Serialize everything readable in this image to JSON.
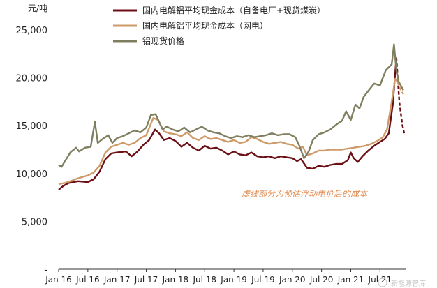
{
  "chart_data": {
    "type": "line",
    "unit_label": "元/吨",
    "xlabel": "",
    "ylabel": "",
    "xlim": [
      2016.0,
      2021.95
    ],
    "ylim": [
      0,
      25000
    ],
    "y_ticks": [
      {
        "value": 0,
        "label": "-"
      },
      {
        "value": 5000,
        "label": "5,000"
      },
      {
        "value": 10000,
        "label": "10,000"
      },
      {
        "value": 15000,
        "label": "15,000"
      },
      {
        "value": 20000,
        "label": "20,000"
      },
      {
        "value": 25000,
        "label": "25,000"
      }
    ],
    "x_ticks": [
      {
        "value": 2016.0,
        "label": "Jan 16"
      },
      {
        "value": 2016.5,
        "label": "Jul 16"
      },
      {
        "value": 2017.0,
        "label": "Jan 17"
      },
      {
        "value": 2017.5,
        "label": "Jul 17"
      },
      {
        "value": 2018.0,
        "label": "Jan 18"
      },
      {
        "value": 2018.5,
        "label": "Jul 18"
      },
      {
        "value": 2019.0,
        "label": "Jan 19"
      },
      {
        "value": 2019.5,
        "label": "Jul 19"
      },
      {
        "value": 2020.0,
        "label": "Jan 20"
      },
      {
        "value": 2020.5,
        "label": "Jul 20"
      },
      {
        "value": 2021.0,
        "label": "Jan 21"
      },
      {
        "value": 2021.5,
        "label": "Jul 21"
      }
    ],
    "legend": "top-center",
    "grid": false,
    "annotation": {
      "text": "虚线部分为预估浮动电价后的成本",
      "color": "#E08A4E",
      "x": 2020.5,
      "y": 7800
    },
    "watermark": "新能源智库",
    "series": [
      {
        "name": "国内电解铝平均现金成本（自备电厂+现货煤炭）",
        "color": "#6B0F14",
        "dashed_tail_from": 2021.78,
        "points": [
          [
            2016.0,
            8300
          ],
          [
            2016.08,
            8700
          ],
          [
            2016.17,
            9000
          ],
          [
            2016.33,
            9200
          ],
          [
            2016.5,
            9100
          ],
          [
            2016.6,
            9400
          ],
          [
            2016.7,
            10200
          ],
          [
            2016.8,
            11500
          ],
          [
            2016.9,
            12100
          ],
          [
            2017.0,
            12200
          ],
          [
            2017.15,
            12300
          ],
          [
            2017.25,
            11800
          ],
          [
            2017.35,
            12300
          ],
          [
            2017.45,
            13000
          ],
          [
            2017.55,
            13500
          ],
          [
            2017.65,
            14600
          ],
          [
            2017.72,
            14200
          ],
          [
            2017.8,
            13500
          ],
          [
            2017.9,
            13700
          ],
          [
            2018.0,
            13400
          ],
          [
            2018.1,
            12800
          ],
          [
            2018.2,
            13200
          ],
          [
            2018.3,
            12700
          ],
          [
            2018.4,
            12400
          ],
          [
            2018.5,
            12900
          ],
          [
            2018.6,
            12600
          ],
          [
            2018.7,
            12700
          ],
          [
            2018.8,
            12400
          ],
          [
            2018.9,
            12000
          ],
          [
            2019.0,
            12300
          ],
          [
            2019.1,
            12000
          ],
          [
            2019.2,
            11900
          ],
          [
            2019.3,
            12200
          ],
          [
            2019.4,
            11800
          ],
          [
            2019.5,
            11700
          ],
          [
            2019.6,
            11800
          ],
          [
            2019.7,
            11600
          ],
          [
            2019.8,
            11800
          ],
          [
            2019.9,
            11700
          ],
          [
            2020.0,
            11600
          ],
          [
            2020.08,
            11300
          ],
          [
            2020.15,
            11500
          ],
          [
            2020.25,
            10600
          ],
          [
            2020.35,
            10500
          ],
          [
            2020.45,
            10800
          ],
          [
            2020.55,
            10700
          ],
          [
            2020.65,
            10900
          ],
          [
            2020.75,
            11000
          ],
          [
            2020.85,
            11000
          ],
          [
            2020.95,
            11400
          ],
          [
            2021.0,
            12200
          ],
          [
            2021.05,
            11600
          ],
          [
            2021.12,
            11200
          ],
          [
            2021.2,
            11800
          ],
          [
            2021.3,
            12400
          ],
          [
            2021.4,
            12900
          ],
          [
            2021.5,
            13300
          ],
          [
            2021.58,
            13600
          ],
          [
            2021.65,
            14200
          ],
          [
            2021.72,
            17200
          ],
          [
            2021.78,
            22100
          ],
          [
            2021.83,
            17500
          ],
          [
            2021.88,
            15200
          ],
          [
            2021.92,
            14000
          ]
        ]
      },
      {
        "name": "国内电解铝平均现金成本（网电）",
        "color": "#CE9A68",
        "dashed_tail_from": 2021.8,
        "points": [
          [
            2016.0,
            8900
          ],
          [
            2016.1,
            9000
          ],
          [
            2016.2,
            9200
          ],
          [
            2016.33,
            9500
          ],
          [
            2016.5,
            9800
          ],
          [
            2016.6,
            10100
          ],
          [
            2016.7,
            10800
          ],
          [
            2016.8,
            12200
          ],
          [
            2016.9,
            12800
          ],
          [
            2017.0,
            13000
          ],
          [
            2017.1,
            13200
          ],
          [
            2017.2,
            13000
          ],
          [
            2017.3,
            13200
          ],
          [
            2017.4,
            13700
          ],
          [
            2017.5,
            14000
          ],
          [
            2017.62,
            15800
          ],
          [
            2017.7,
            15600
          ],
          [
            2017.8,
            14400
          ],
          [
            2017.9,
            14200
          ],
          [
            2018.0,
            14100
          ],
          [
            2018.1,
            13900
          ],
          [
            2018.2,
            14300
          ],
          [
            2018.3,
            13700
          ],
          [
            2018.4,
            13500
          ],
          [
            2018.5,
            13900
          ],
          [
            2018.6,
            13600
          ],
          [
            2018.7,
            13700
          ],
          [
            2018.8,
            13500
          ],
          [
            2018.9,
            13300
          ],
          [
            2019.0,
            13500
          ],
          [
            2019.1,
            13200
          ],
          [
            2019.2,
            13300
          ],
          [
            2019.3,
            13800
          ],
          [
            2019.4,
            13600
          ],
          [
            2019.5,
            13300
          ],
          [
            2019.6,
            13100
          ],
          [
            2019.7,
            13200
          ],
          [
            2019.8,
            13300
          ],
          [
            2019.9,
            13100
          ],
          [
            2020.0,
            13000
          ],
          [
            2020.1,
            12600
          ],
          [
            2020.18,
            12800
          ],
          [
            2020.25,
            11900
          ],
          [
            2020.35,
            12100
          ],
          [
            2020.45,
            12400
          ],
          [
            2020.55,
            12400
          ],
          [
            2020.65,
            12500
          ],
          [
            2020.75,
            12500
          ],
          [
            2020.85,
            12500
          ],
          [
            2020.95,
            12600
          ],
          [
            2021.05,
            12700
          ],
          [
            2021.15,
            12800
          ],
          [
            2021.25,
            12900
          ],
          [
            2021.35,
            13100
          ],
          [
            2021.45,
            13400
          ],
          [
            2021.55,
            13800
          ],
          [
            2021.62,
            14600
          ],
          [
            2021.7,
            17500
          ],
          [
            2021.76,
            19900
          ],
          [
            2021.8,
            19600
          ],
          [
            2021.85,
            18800
          ],
          [
            2021.9,
            18300
          ]
        ]
      },
      {
        "name": "铝现货价格",
        "color": "#7F7F60",
        "points": [
          [
            2016.0,
            10900
          ],
          [
            2016.05,
            10700
          ],
          [
            2016.1,
            11200
          ],
          [
            2016.2,
            12200
          ],
          [
            2016.3,
            12700
          ],
          [
            2016.35,
            12300
          ],
          [
            2016.45,
            12700
          ],
          [
            2016.55,
            12800
          ],
          [
            2016.62,
            15400
          ],
          [
            2016.67,
            13200
          ],
          [
            2016.75,
            13600
          ],
          [
            2016.85,
            14000
          ],
          [
            2016.92,
            13200
          ],
          [
            2017.0,
            13700
          ],
          [
            2017.1,
            13900
          ],
          [
            2017.2,
            14200
          ],
          [
            2017.3,
            14500
          ],
          [
            2017.4,
            14300
          ],
          [
            2017.5,
            14800
          ],
          [
            2017.58,
            16100
          ],
          [
            2017.66,
            16200
          ],
          [
            2017.72,
            15400
          ],
          [
            2017.78,
            14600
          ],
          [
            2017.85,
            14900
          ],
          [
            2017.95,
            14600
          ],
          [
            2018.05,
            14400
          ],
          [
            2018.15,
            14800
          ],
          [
            2018.25,
            14300
          ],
          [
            2018.35,
            14600
          ],
          [
            2018.45,
            14900
          ],
          [
            2018.55,
            14500
          ],
          [
            2018.65,
            14300
          ],
          [
            2018.75,
            14200
          ],
          [
            2018.85,
            13900
          ],
          [
            2018.95,
            13700
          ],
          [
            2019.05,
            13900
          ],
          [
            2019.15,
            13800
          ],
          [
            2019.25,
            14000
          ],
          [
            2019.35,
            13800
          ],
          [
            2019.45,
            13900
          ],
          [
            2019.55,
            14000
          ],
          [
            2019.65,
            14200
          ],
          [
            2019.75,
            14000
          ],
          [
            2019.85,
            14100
          ],
          [
            2019.95,
            14100
          ],
          [
            2020.05,
            13800
          ],
          [
            2020.12,
            12900
          ],
          [
            2020.2,
            11600
          ],
          [
            2020.28,
            12300
          ],
          [
            2020.35,
            13500
          ],
          [
            2020.45,
            14100
          ],
          [
            2020.55,
            14300
          ],
          [
            2020.65,
            14600
          ],
          [
            2020.75,
            15100
          ],
          [
            2020.85,
            15500
          ],
          [
            2020.92,
            16500
          ],
          [
            2021.0,
            15600
          ],
          [
            2021.08,
            17200
          ],
          [
            2021.15,
            16800
          ],
          [
            2021.22,
            18000
          ],
          [
            2021.32,
            18800
          ],
          [
            2021.4,
            19400
          ],
          [
            2021.5,
            19200
          ],
          [
            2021.6,
            20800
          ],
          [
            2021.7,
            21400
          ],
          [
            2021.74,
            23500
          ],
          [
            2021.78,
            20800
          ],
          [
            2021.82,
            19600
          ],
          [
            2021.9,
            18700
          ]
        ]
      }
    ]
  }
}
